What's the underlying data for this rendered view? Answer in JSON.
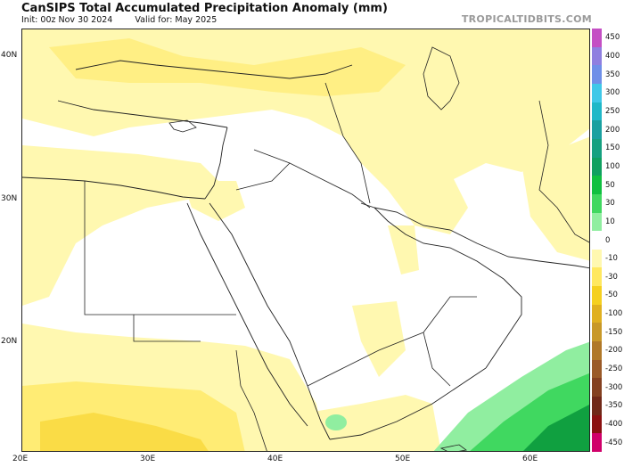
{
  "title": "CanSIPS Total Accumulated Precipitation Anomaly (mm)",
  "init_text": "Init: 00z Nov 30 2024",
  "valid_text": "Valid for: May 2025",
  "brand": "TROPICALTIDBITS.COM",
  "lat_labels": [
    "40N",
    "30N",
    "20N"
  ],
  "lon_labels": [
    "20E",
    "30E",
    "40E",
    "50E",
    "60E"
  ],
  "colorbar": {
    "levels": [
      "450",
      "400",
      "350",
      "300",
      "250",
      "200",
      "150",
      "100",
      "50",
      "30",
      "10",
      "0",
      "-10",
      "-30",
      "-50",
      "-100",
      "-150",
      "-200",
      "-250",
      "-300",
      "-350",
      "-400",
      "-450"
    ],
    "colors": [
      "#c44fc4",
      "#8f7fe0",
      "#6f8fe8",
      "#3fc8e8",
      "#20b8c8",
      "#1aa0a0",
      "#16a080",
      "#10a060",
      "#10c040",
      "#40d860",
      "#90eea0",
      "#ffffff",
      "#fff8b0",
      "#ffe860",
      "#f5d020",
      "#e0b020",
      "#c89828",
      "#b07828",
      "#9a5a28",
      "#844020",
      "#702818",
      "#8a1010",
      "#d0006a"
    ]
  },
  "colors": {
    "dry_light": "#fff8b0",
    "dry_medium": "#ffe860",
    "dry_strong": "#f5d020",
    "wet_light": "#90eea0",
    "wet_medium": "#40d860",
    "wet_strong": "#10a040",
    "border": "#222222"
  }
}
